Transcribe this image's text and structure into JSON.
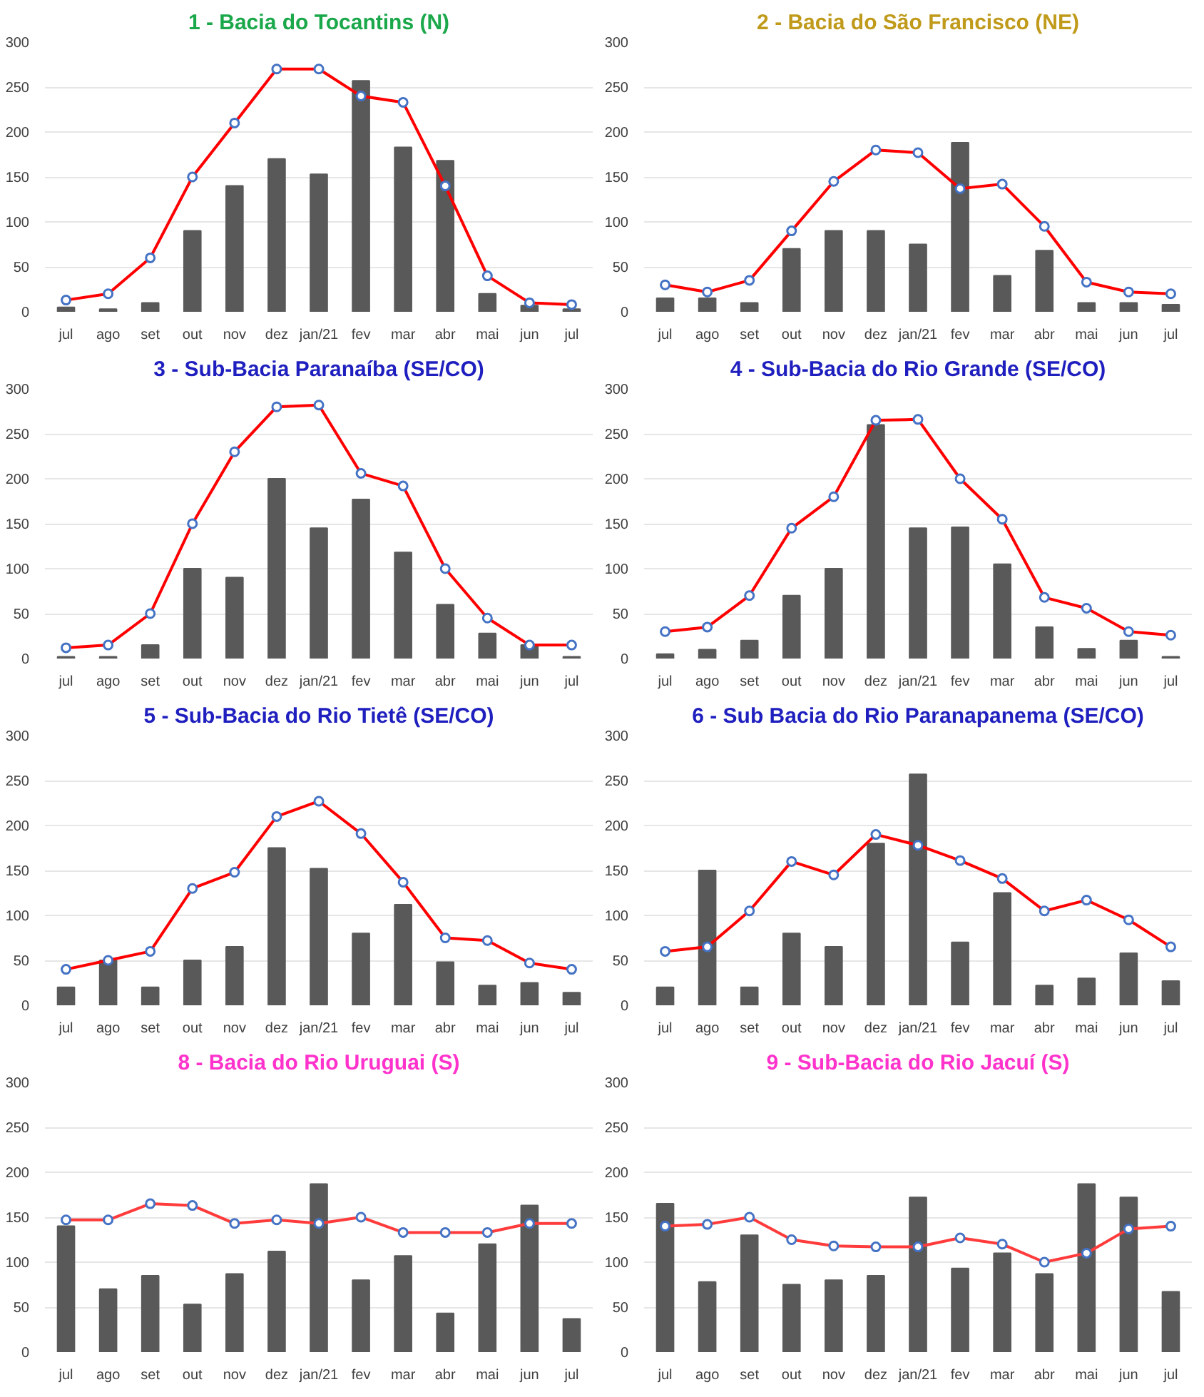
{
  "chart_data": [
    {
      "type": "bar",
      "title": "1 - Bacia do Tocantins (N)",
      "categories": [
        "jul",
        "ago",
        "set",
        "out",
        "nov",
        "dez",
        "jan/21",
        "fev",
        "mar",
        "abr",
        "mai",
        "jun",
        "jul"
      ],
      "ylim": [
        0,
        300
      ],
      "yticks": [
        0,
        50,
        100,
        150,
        200,
        250,
        300
      ],
      "grid": "y",
      "series": [
        {
          "color": "#595959",
          "values": [
            5,
            3,
            10,
            90,
            140,
            170,
            153,
            257,
            183,
            168,
            20,
            7,
            3
          ]
        },
        {
          "type": "line",
          "color": "#ff0000",
          "marker": "circle",
          "values": [
            13,
            20,
            60,
            150,
            210,
            270,
            270,
            240,
            233,
            140,
            40,
            10,
            8
          ]
        }
      ]
    },
    {
      "type": "bar",
      "title": "2 - Bacia do São Francisco (NE)",
      "categories": [
        "jul",
        "ago",
        "set",
        "out",
        "nov",
        "dez",
        "jan/21",
        "fev",
        "mar",
        "abr",
        "mai",
        "jun",
        "jul"
      ],
      "ylim": [
        0,
        300
      ],
      "yticks": [
        0,
        50,
        100,
        150,
        200,
        250,
        300
      ],
      "grid": "y",
      "series": [
        {
          "color": "#595959",
          "values": [
            15,
            15,
            10,
            70,
            90,
            90,
            75,
            188,
            40,
            68,
            10,
            10,
            8
          ]
        },
        {
          "type": "line",
          "color": "#ff0000",
          "marker": "circle",
          "values": [
            30,
            22,
            35,
            90,
            145,
            180,
            177,
            137,
            142,
            95,
            33,
            22,
            20
          ]
        }
      ]
    },
    {
      "type": "bar",
      "title": "3 - Sub-Bacia Paranaíba (SE/CO)",
      "categories": [
        "jul",
        "ago",
        "set",
        "out",
        "nov",
        "dez",
        "jan/21",
        "fev",
        "mar",
        "abr",
        "mai",
        "jun",
        "jul"
      ],
      "ylim": [
        0,
        300
      ],
      "yticks": [
        0,
        50,
        100,
        150,
        200,
        250,
        300
      ],
      "grid": "y",
      "series": [
        {
          "color": "#595959",
          "values": [
            2,
            2,
            15,
            100,
            90,
            200,
            145,
            177,
            118,
            60,
            28,
            15,
            2
          ]
        },
        {
          "type": "line",
          "color": "#ff0000",
          "marker": "circle",
          "values": [
            12,
            15,
            50,
            150,
            230,
            280,
            282,
            206,
            192,
            100,
            45,
            15,
            15
          ]
        }
      ]
    },
    {
      "type": "bar",
      "title": "4 - Sub-Bacia do Rio Grande (SE/CO)",
      "categories": [
        "jul",
        "ago",
        "set",
        "out",
        "nov",
        "dez",
        "jan/21",
        "fev",
        "mar",
        "abr",
        "mai",
        "jun",
        "jul"
      ],
      "ylim": [
        0,
        300
      ],
      "yticks": [
        0,
        50,
        100,
        150,
        200,
        250,
        300
      ],
      "grid": "y",
      "series": [
        {
          "color": "#595959",
          "values": [
            5,
            10,
            20,
            70,
            100,
            260,
            145,
            146,
            105,
            35,
            11,
            20,
            2
          ]
        },
        {
          "type": "line",
          "color": "#ff0000",
          "marker": "circle",
          "values": [
            30,
            35,
            70,
            145,
            180,
            265,
            266,
            200,
            155,
            68,
            56,
            30,
            26
          ]
        }
      ]
    },
    {
      "type": "bar",
      "title": "5 - Sub-Bacia do Rio Tietê (SE/CO)",
      "categories": [
        "jul",
        "ago",
        "set",
        "out",
        "nov",
        "dez",
        "jan/21",
        "fev",
        "mar",
        "abr",
        "mai",
        "jun",
        "jul"
      ],
      "ylim": [
        0,
        300
      ],
      "yticks": [
        0,
        50,
        100,
        150,
        200,
        250,
        300
      ],
      "grid": "y",
      "series": [
        {
          "color": "#595959",
          "values": [
            20,
            50,
            20,
            50,
            65,
            175,
            152,
            80,
            112,
            48,
            22,
            25,
            14
          ]
        },
        {
          "type": "line",
          "color": "#ff0000",
          "marker": "circle",
          "values": [
            40,
            50,
            60,
            130,
            148,
            210,
            227,
            191,
            137,
            75,
            72,
            47,
            40
          ]
        }
      ]
    },
    {
      "type": "bar",
      "title": "6 - Sub Bacia do Rio Paranapanema (SE/CO)",
      "categories": [
        "jul",
        "ago",
        "set",
        "out",
        "nov",
        "dez",
        "jan/21",
        "fev",
        "mar",
        "abr",
        "mai",
        "jun",
        "jul"
      ],
      "ylim": [
        0,
        300
      ],
      "yticks": [
        0,
        50,
        100,
        150,
        200,
        250,
        300
      ],
      "grid": "y",
      "series": [
        {
          "color": "#595959",
          "values": [
            20,
            150,
            20,
            80,
            65,
            180,
            257,
            70,
            125,
            22,
            30,
            58,
            27
          ]
        },
        {
          "type": "line",
          "color": "#ff0000",
          "marker": "circle",
          "values": [
            60,
            65,
            105,
            160,
            145,
            190,
            178,
            161,
            141,
            105,
            117,
            95,
            65
          ]
        }
      ]
    },
    {
      "type": "bar",
      "title": "8 - Bacia do Rio Uruguai (S)",
      "categories": [
        "jul",
        "ago",
        "set",
        "out",
        "nov",
        "dez",
        "jan/21",
        "fev",
        "mar",
        "abr",
        "mai",
        "jun",
        "jul"
      ],
      "ylim": [
        0,
        300
      ],
      "yticks": [
        0,
        50,
        100,
        150,
        200,
        250,
        300
      ],
      "grid": "y",
      "series": [
        {
          "color": "#595959",
          "values": [
            140,
            70,
            85,
            53,
            87,
            112,
            187,
            80,
            107,
            43,
            120,
            163,
            37
          ]
        },
        {
          "type": "line",
          "color": "#ff3b3b",
          "marker": "circle",
          "values": [
            147,
            147,
            165,
            163,
            143,
            147,
            143,
            150,
            133,
            133,
            133,
            143,
            143
          ]
        }
      ]
    },
    {
      "type": "bar",
      "title": "9 - Sub-Bacia do Rio Jacuí (S)",
      "categories": [
        "jul",
        "ago",
        "set",
        "out",
        "nov",
        "dez",
        "jan/21",
        "fev",
        "mar",
        "abr",
        "mai",
        "jun",
        "jul"
      ],
      "ylim": [
        0,
        300
      ],
      "yticks": [
        0,
        50,
        100,
        150,
        200,
        250,
        300
      ],
      "grid": "y",
      "series": [
        {
          "color": "#595959",
          "values": [
            165,
            78,
            130,
            75,
            80,
            85,
            172,
            93,
            110,
            87,
            187,
            172,
            67
          ]
        },
        {
          "type": "line",
          "color": "#ff3b3b",
          "marker": "circle",
          "values": [
            140,
            142,
            150,
            125,
            118,
            117,
            117,
            127,
            120,
            100,
            110,
            137,
            140
          ]
        }
      ]
    }
  ]
}
